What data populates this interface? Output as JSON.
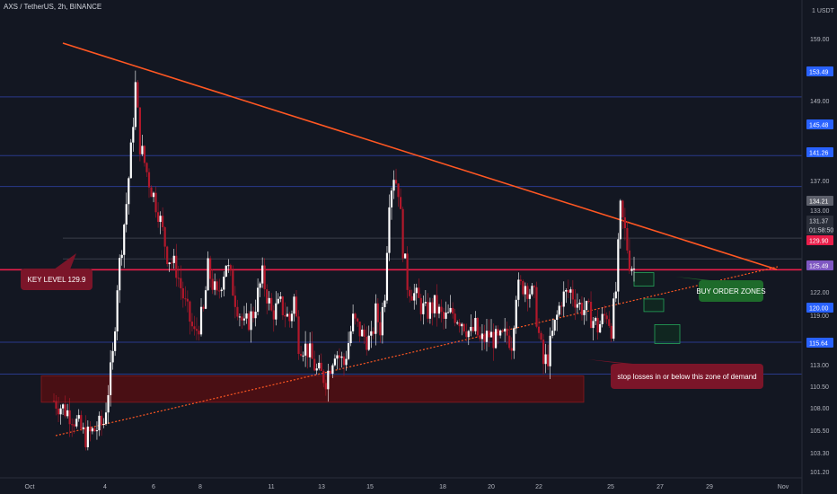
{
  "header": {
    "title": "AXS / TetherUS, 2h, BINANCE"
  },
  "colors": {
    "background": "#131722",
    "up": "#ffffff",
    "down": "#b2182b",
    "hline": "#2a3a8c",
    "key_level": "#e91e4a",
    "trendline": "#ff5722",
    "zone_fill": "#5c0d10",
    "buy_zone": "#26a65b",
    "axis_text": "#b2b5be"
  },
  "chart_data": {
    "type": "candlestick",
    "title": "AXS / TetherUS, 2h, BINANCE",
    "ylim": [
      100.5,
      165.5
    ],
    "y_axis_unit": "USDT",
    "y_ticks": [
      "159.00",
      "149.00",
      "137.00",
      "133.00",
      "122.00",
      "119.00",
      "113.00",
      "110.50",
      "108.00",
      "105.50",
      "103.30",
      "101.20"
    ],
    "x_ticks": [
      "Oct",
      "4",
      "6",
      "8",
      "11",
      "13",
      "15",
      "18",
      "20",
      "22",
      "25",
      "27",
      "29",
      "Nov"
    ],
    "horizontal_levels": [
      153.49,
      145.48,
      141.26,
      120.0,
      115.64
    ],
    "key_level": 129.9,
    "grey_levels": [
      134.21,
      131.37
    ],
    "price_labels": [
      {
        "text": "153.49",
        "style": "blue"
      },
      {
        "text": "145.48",
        "style": "blue"
      },
      {
        "text": "141.26",
        "style": "blue"
      },
      {
        "text": "134.21",
        "style": "grey"
      },
      {
        "text": "131.37",
        "style": "dark"
      },
      {
        "text": "01:58:50",
        "style": "dark"
      },
      {
        "text": "129.90",
        "style": "red"
      },
      {
        "text": "125.49",
        "style": "purple"
      },
      {
        "text": "120.00",
        "style": "blue"
      },
      {
        "text": "115.64",
        "style": "blue"
      }
    ],
    "price_path": [
      [
        0,
        112
      ],
      [
        4,
        110
      ],
      [
        7,
        107
      ],
      [
        9,
        108
      ],
      [
        11,
        109
      ],
      [
        13,
        118
      ],
      [
        14,
        128
      ],
      [
        16,
        139
      ],
      [
        17,
        146
      ],
      [
        18,
        155
      ],
      [
        19,
        147
      ],
      [
        21,
        142
      ],
      [
        23,
        138
      ],
      [
        25,
        132
      ],
      [
        27,
        130
      ],
      [
        29,
        125
      ],
      [
        31,
        121
      ],
      [
        33,
        124
      ],
      [
        34,
        130
      ],
      [
        36,
        126
      ],
      [
        38,
        131
      ],
      [
        40,
        126
      ],
      [
        42,
        122
      ],
      [
        44,
        124
      ],
      [
        46,
        129
      ],
      [
        48,
        124
      ],
      [
        50,
        125
      ],
      [
        52,
        123
      ],
      [
        53,
        126
      ],
      [
        54,
        120
      ],
      [
        56,
        119
      ],
      [
        58,
        116
      ],
      [
        60,
        115
      ],
      [
        62,
        119
      ],
      [
        64,
        117
      ],
      [
        66,
        123
      ],
      [
        68,
        121
      ],
      [
        70,
        120
      ],
      [
        71,
        124
      ],
      [
        72,
        122
      ],
      [
        73,
        127
      ],
      [
        74,
        140
      ],
      [
        75,
        143
      ],
      [
        76,
        141
      ],
      [
        77,
        133
      ],
      [
        78,
        128
      ],
      [
        80,
        126
      ],
      [
        82,
        124
      ],
      [
        84,
        125
      ],
      [
        86,
        123
      ],
      [
        88,
        124
      ],
      [
        90,
        123
      ],
      [
        92,
        121
      ],
      [
        93,
        122
      ],
      [
        94,
        120
      ],
      [
        96,
        121
      ],
      [
        98,
        120
      ],
      [
        100,
        121
      ],
      [
        101,
        120
      ],
      [
        102,
        127
      ],
      [
        104,
        128
      ],
      [
        106,
        126
      ],
      [
        107,
        121
      ],
      [
        108,
        117
      ],
      [
        109,
        118
      ],
      [
        110,
        121
      ],
      [
        112,
        126
      ],
      [
        114,
        127
      ],
      [
        116,
        125
      ],
      [
        118,
        124
      ],
      [
        120,
        122
      ],
      [
        122,
        124
      ],
      [
        123,
        122
      ],
      [
        124,
        127
      ],
      [
        125,
        138
      ],
      [
        126,
        135
      ],
      [
        127,
        131
      ],
      [
        128,
        130
      ]
    ],
    "annotations": [
      {
        "text": "KEY LEVEL 129.9"
      },
      {
        "text": "BUY ORDER ZONES"
      },
      {
        "text": "stop losses in or below this zone of demand"
      }
    ]
  }
}
